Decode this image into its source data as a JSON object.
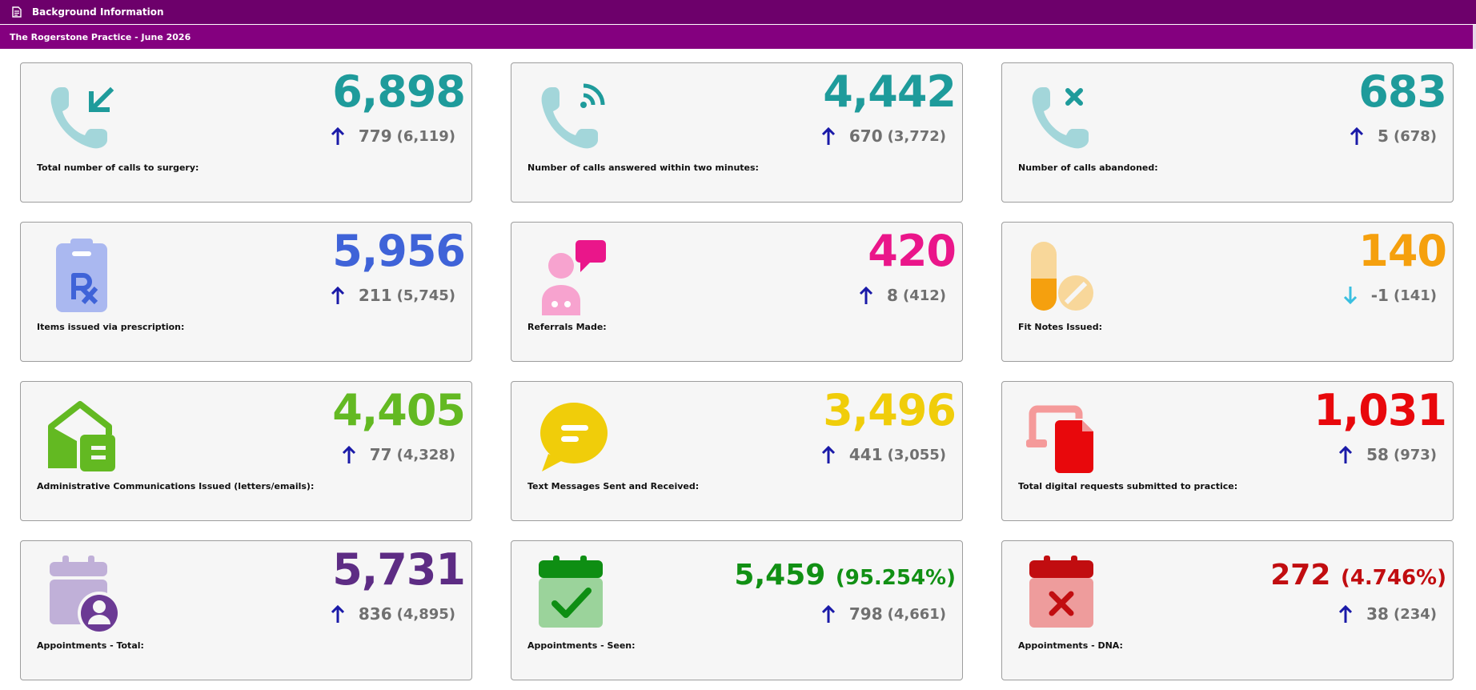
{
  "header": {
    "title": "Background Information",
    "subtitle": "The Rogerstone Practice - June 2026"
  },
  "cards": [
    {
      "label": "Total number of calls to surgery:",
      "value": "6,898",
      "delta": "779",
      "prev": "(6,119)",
      "direction": "up",
      "color": "#1e9b9b",
      "icon": "phone-incoming-icon"
    },
    {
      "label": "Number of calls answered within two minutes:",
      "value": "4,442",
      "delta": "670",
      "prev": "(3,772)",
      "direction": "up",
      "color": "#1e9b9b",
      "icon": "phone-ringing-icon"
    },
    {
      "label": "Number of calls abandoned:",
      "value": "683",
      "delta": "5",
      "prev": "(678)",
      "direction": "up",
      "color": "#1e9b9b",
      "icon": "phone-missed-icon"
    },
    {
      "label": "Items issued via prescription:",
      "value": "5,956",
      "delta": "211",
      "prev": "(5,745)",
      "direction": "up",
      "color": "#3f63d8",
      "icon": "prescription-icon"
    },
    {
      "label": "Referrals Made:",
      "value": "420",
      "delta": "8",
      "prev": "(412)",
      "direction": "up",
      "color": "#ea168a",
      "icon": "doctor-chat-icon"
    },
    {
      "label": "Fit Notes Issued:",
      "value": "140",
      "delta": "-1",
      "prev": "(141)",
      "direction": "down",
      "color": "#f5a00e",
      "icon": "pills-icon"
    },
    {
      "label": "Administrative Communications Issued (letters/emails):",
      "value": "4,405",
      "delta": "77",
      "prev": "(4,328)",
      "direction": "up",
      "color": "#63b922",
      "icon": "mailbox-icon"
    },
    {
      "label": "Text Messages Sent and Received:",
      "value": "3,496",
      "delta": "441",
      "prev": "(3,055)",
      "direction": "up",
      "color": "#f0cd0a",
      "icon": "chat-bubble-icon"
    },
    {
      "label": "Total digital requests submitted to practice:",
      "value": "1,031",
      "delta": "58",
      "prev": "(973)",
      "direction": "up",
      "color": "#e8080c",
      "icon": "digital-request-icon"
    },
    {
      "label": "Appointments - Total:",
      "value": "5,731",
      "pct": "",
      "delta": "836",
      "prev": "(4,895)",
      "direction": "up",
      "color": "#5d2c84",
      "icon": "calendar-user-icon"
    },
    {
      "label": "Appointments - Seen:",
      "value": "5,459",
      "pct": "(95.254%)",
      "delta": "798",
      "prev": "(4,661)",
      "direction": "up",
      "color": "#119014",
      "icon": "calendar-check-icon"
    },
    {
      "label": "Appointments - DNA:",
      "value": "272",
      "pct": "(4.746%)",
      "delta": "38",
      "prev": "(234)",
      "direction": "up",
      "color": "#c10d10",
      "icon": "calendar-x-icon"
    }
  ],
  "colors": {
    "topbar": "#6d006b",
    "subbar": "#84007f",
    "arrow_up": "#1a1aa8",
    "arrow_down": "#39bfe0"
  }
}
